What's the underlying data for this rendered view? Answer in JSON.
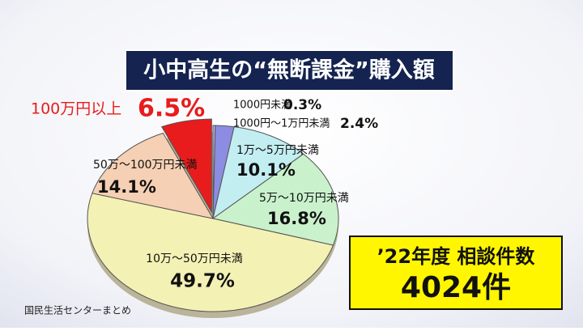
{
  "chart_data": {
    "type": "pie",
    "title": "小中高生の“無断課金”購入額",
    "categories": [
      "1000円未満",
      "1000円～1万円未満",
      "1万～5万円未満",
      "5万～10万円未満",
      "10万～50万円未満",
      "50万～100万円未満",
      "100万円以上"
    ],
    "values": [
      0.3,
      2.4,
      10.1,
      16.8,
      49.7,
      14.1,
      6.5
    ],
    "value_labels": [
      "0.3%",
      "2.4%",
      "10.1%",
      "16.8%",
      "49.7%",
      "14.1%",
      "6.5%"
    ],
    "colors": [
      "#bdb4ec",
      "#8c8ce2",
      "#c2eef2",
      "#c9f2cc",
      "#f4f1b4",
      "#f6d0b4",
      "#e81c1c"
    ],
    "callout": {
      "label": "’22年度 相談件数",
      "value_label": "4024件"
    },
    "source": "国民生活センターまとめ"
  }
}
